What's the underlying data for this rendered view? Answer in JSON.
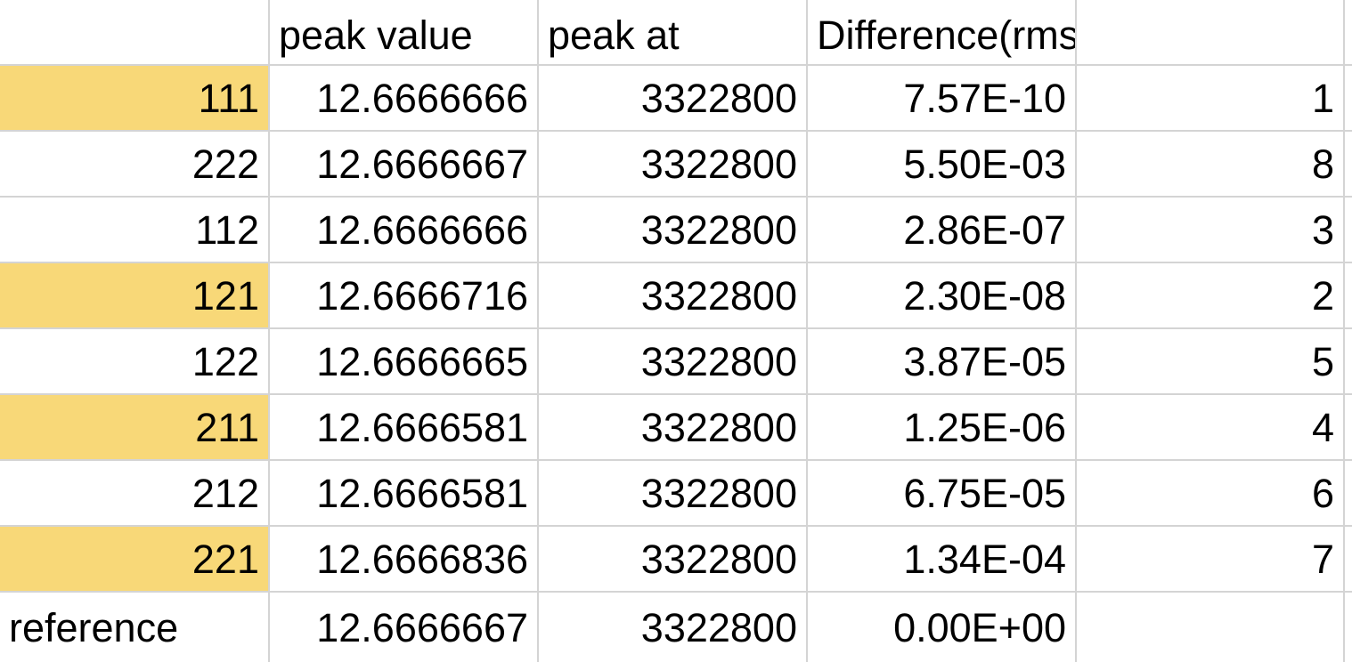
{
  "spreadsheet": {
    "headers": [
      "",
      "peak value",
      "peak at",
      "Difference(rms)",
      ""
    ],
    "highlight_color": "#f8d878",
    "rows": [
      {
        "label": "111",
        "peak_value": "12.6666666",
        "peak_at": "3322800",
        "difference": "7.57E-10",
        "rank": "1",
        "highlighted": true
      },
      {
        "label": "222",
        "peak_value": "12.6666667",
        "peak_at": "3322800",
        "difference": "5.50E-03",
        "rank": "8",
        "highlighted": false
      },
      {
        "label": "112",
        "peak_value": "12.6666666",
        "peak_at": "3322800",
        "difference": "2.86E-07",
        "rank": "3",
        "highlighted": false
      },
      {
        "label": "121",
        "peak_value": "12.6666716",
        "peak_at": "3322800",
        "difference": "2.30E-08",
        "rank": "2",
        "highlighted": true
      },
      {
        "label": "122",
        "peak_value": "12.6666665",
        "peak_at": "3322800",
        "difference": "3.87E-05",
        "rank": "5",
        "highlighted": false
      },
      {
        "label": "211",
        "peak_value": "12.6666581",
        "peak_at": "3322800",
        "difference": "1.25E-06",
        "rank": "4",
        "highlighted": true
      },
      {
        "label": "212",
        "peak_value": "12.6666581",
        "peak_at": "3322800",
        "difference": "6.75E-05",
        "rank": "6",
        "highlighted": false
      },
      {
        "label": "221",
        "peak_value": "12.6666836",
        "peak_at": "3322800",
        "difference": "1.34E-04",
        "rank": "7",
        "highlighted": true
      },
      {
        "label": "reference",
        "peak_value": "12.6666667",
        "peak_at": "3322800",
        "difference": "0.00E+00",
        "rank": "",
        "highlighted": false
      }
    ]
  }
}
